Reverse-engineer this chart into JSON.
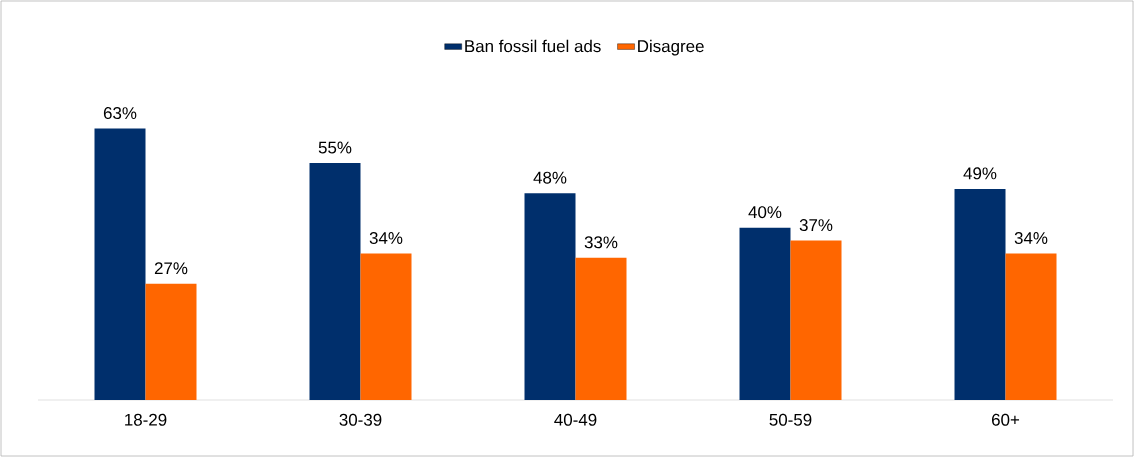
{
  "chart_data": {
    "type": "bar",
    "categories": [
      "18-29",
      "30-39",
      "40-49",
      "50-59",
      "60+"
    ],
    "series": [
      {
        "name": "Ban fossil fuel ads",
        "color": "#002f6c",
        "values": [
          63,
          55,
          48,
          40,
          49
        ],
        "value_labels": [
          "63%",
          "55%",
          "48%",
          "40%",
          "49%"
        ]
      },
      {
        "name": "Disagree",
        "color": "#ff6600",
        "values": [
          27,
          34,
          33,
          37,
          34
        ],
        "value_labels": [
          "27%",
          "34%",
          "33%",
          "37%",
          "34%"
        ]
      }
    ],
    "legend": "top"
  }
}
